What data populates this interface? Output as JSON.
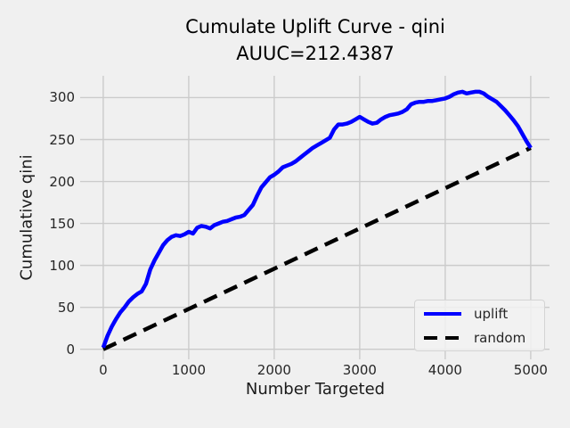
{
  "title": {
    "line1": "Cumulate Uplift Curve - qini",
    "line2": "AUUC=212.4387"
  },
  "axes": {
    "x_label": "Number Targeted",
    "y_label": "Cumulative qini",
    "x_ticks": [
      0,
      1000,
      2000,
      3000,
      4000,
      5000
    ],
    "y_ticks": [
      0,
      50,
      100,
      150,
      200,
      250,
      300
    ]
  },
  "legend": {
    "items": [
      {
        "label": "uplift",
        "color": "#0000ff",
        "style": "solid"
      },
      {
        "label": "random",
        "color": "#000000",
        "style": "dashed"
      }
    ]
  },
  "colors": {
    "background": "#f0f0f0",
    "gridline": "#cbcbcb",
    "uplift_line": "#0000ff",
    "random_line": "#000000",
    "text": "#262626"
  },
  "chart_data": {
    "type": "line",
    "title": "Cumulate Uplift Curve - qini",
    "subtitle": "AUUC=212.4387",
    "auuc": 212.4387,
    "xlabel": "Number Targeted",
    "ylabel": "Cumulative qini",
    "xlim": [
      -270,
      5220
    ],
    "ylim": [
      -12,
      326
    ],
    "grid": true,
    "legend_position": "lower right",
    "series": [
      {
        "name": "uplift",
        "color": "#0000ff",
        "style": "solid",
        "points": [
          [
            0,
            2
          ],
          [
            50,
            16
          ],
          [
            100,
            27
          ],
          [
            150,
            36
          ],
          [
            200,
            44
          ],
          [
            250,
            50
          ],
          [
            300,
            57
          ],
          [
            350,
            62
          ],
          [
            400,
            66
          ],
          [
            450,
            69
          ],
          [
            500,
            78
          ],
          [
            550,
            95
          ],
          [
            600,
            106
          ],
          [
            650,
            115
          ],
          [
            700,
            124
          ],
          [
            750,
            130
          ],
          [
            800,
            134
          ],
          [
            850,
            136
          ],
          [
            900,
            135
          ],
          [
            950,
            137
          ],
          [
            1000,
            140
          ],
          [
            1050,
            138
          ],
          [
            1100,
            145
          ],
          [
            1150,
            147
          ],
          [
            1200,
            146
          ],
          [
            1250,
            144
          ],
          [
            1300,
            148
          ],
          [
            1350,
            150
          ],
          [
            1400,
            152
          ],
          [
            1450,
            153
          ],
          [
            1500,
            155
          ],
          [
            1550,
            157
          ],
          [
            1600,
            158
          ],
          [
            1650,
            160
          ],
          [
            1700,
            166
          ],
          [
            1750,
            172
          ],
          [
            1800,
            183
          ],
          [
            1850,
            193
          ],
          [
            1900,
            199
          ],
          [
            1950,
            205
          ],
          [
            2000,
            208
          ],
          [
            2050,
            212
          ],
          [
            2100,
            217
          ],
          [
            2150,
            219
          ],
          [
            2200,
            221
          ],
          [
            2250,
            224
          ],
          [
            2300,
            228
          ],
          [
            2350,
            232
          ],
          [
            2400,
            236
          ],
          [
            2450,
            240
          ],
          [
            2500,
            243
          ],
          [
            2550,
            246
          ],
          [
            2600,
            249
          ],
          [
            2650,
            252
          ],
          [
            2700,
            262
          ],
          [
            2750,
            268
          ],
          [
            2800,
            268
          ],
          [
            2850,
            269
          ],
          [
            2900,
            271
          ],
          [
            2950,
            274
          ],
          [
            3000,
            277
          ],
          [
            3050,
            274
          ],
          [
            3100,
            271
          ],
          [
            3150,
            269
          ],
          [
            3200,
            270
          ],
          [
            3250,
            274
          ],
          [
            3300,
            277
          ],
          [
            3350,
            279
          ],
          [
            3400,
            280
          ],
          [
            3450,
            281
          ],
          [
            3500,
            283
          ],
          [
            3550,
            286
          ],
          [
            3600,
            292
          ],
          [
            3650,
            294
          ],
          [
            3700,
            295
          ],
          [
            3750,
            295
          ],
          [
            3800,
            296
          ],
          [
            3850,
            296
          ],
          [
            3900,
            297
          ],
          [
            3950,
            298
          ],
          [
            4000,
            299
          ],
          [
            4050,
            301
          ],
          [
            4100,
            304
          ],
          [
            4150,
            306
          ],
          [
            4200,
            307
          ],
          [
            4250,
            305
          ],
          [
            4300,
            306
          ],
          [
            4350,
            307
          ],
          [
            4400,
            307
          ],
          [
            4450,
            305
          ],
          [
            4500,
            301
          ],
          [
            4550,
            298
          ],
          [
            4600,
            295
          ],
          [
            4650,
            290
          ],
          [
            4700,
            285
          ],
          [
            4750,
            279
          ],
          [
            4800,
            273
          ],
          [
            4850,
            266
          ],
          [
            4900,
            257
          ],
          [
            4950,
            248
          ],
          [
            5000,
            240
          ]
        ]
      },
      {
        "name": "random",
        "color": "#000000",
        "style": "dashed",
        "points": [
          [
            0,
            0
          ],
          [
            5000,
            240
          ]
        ]
      }
    ]
  }
}
